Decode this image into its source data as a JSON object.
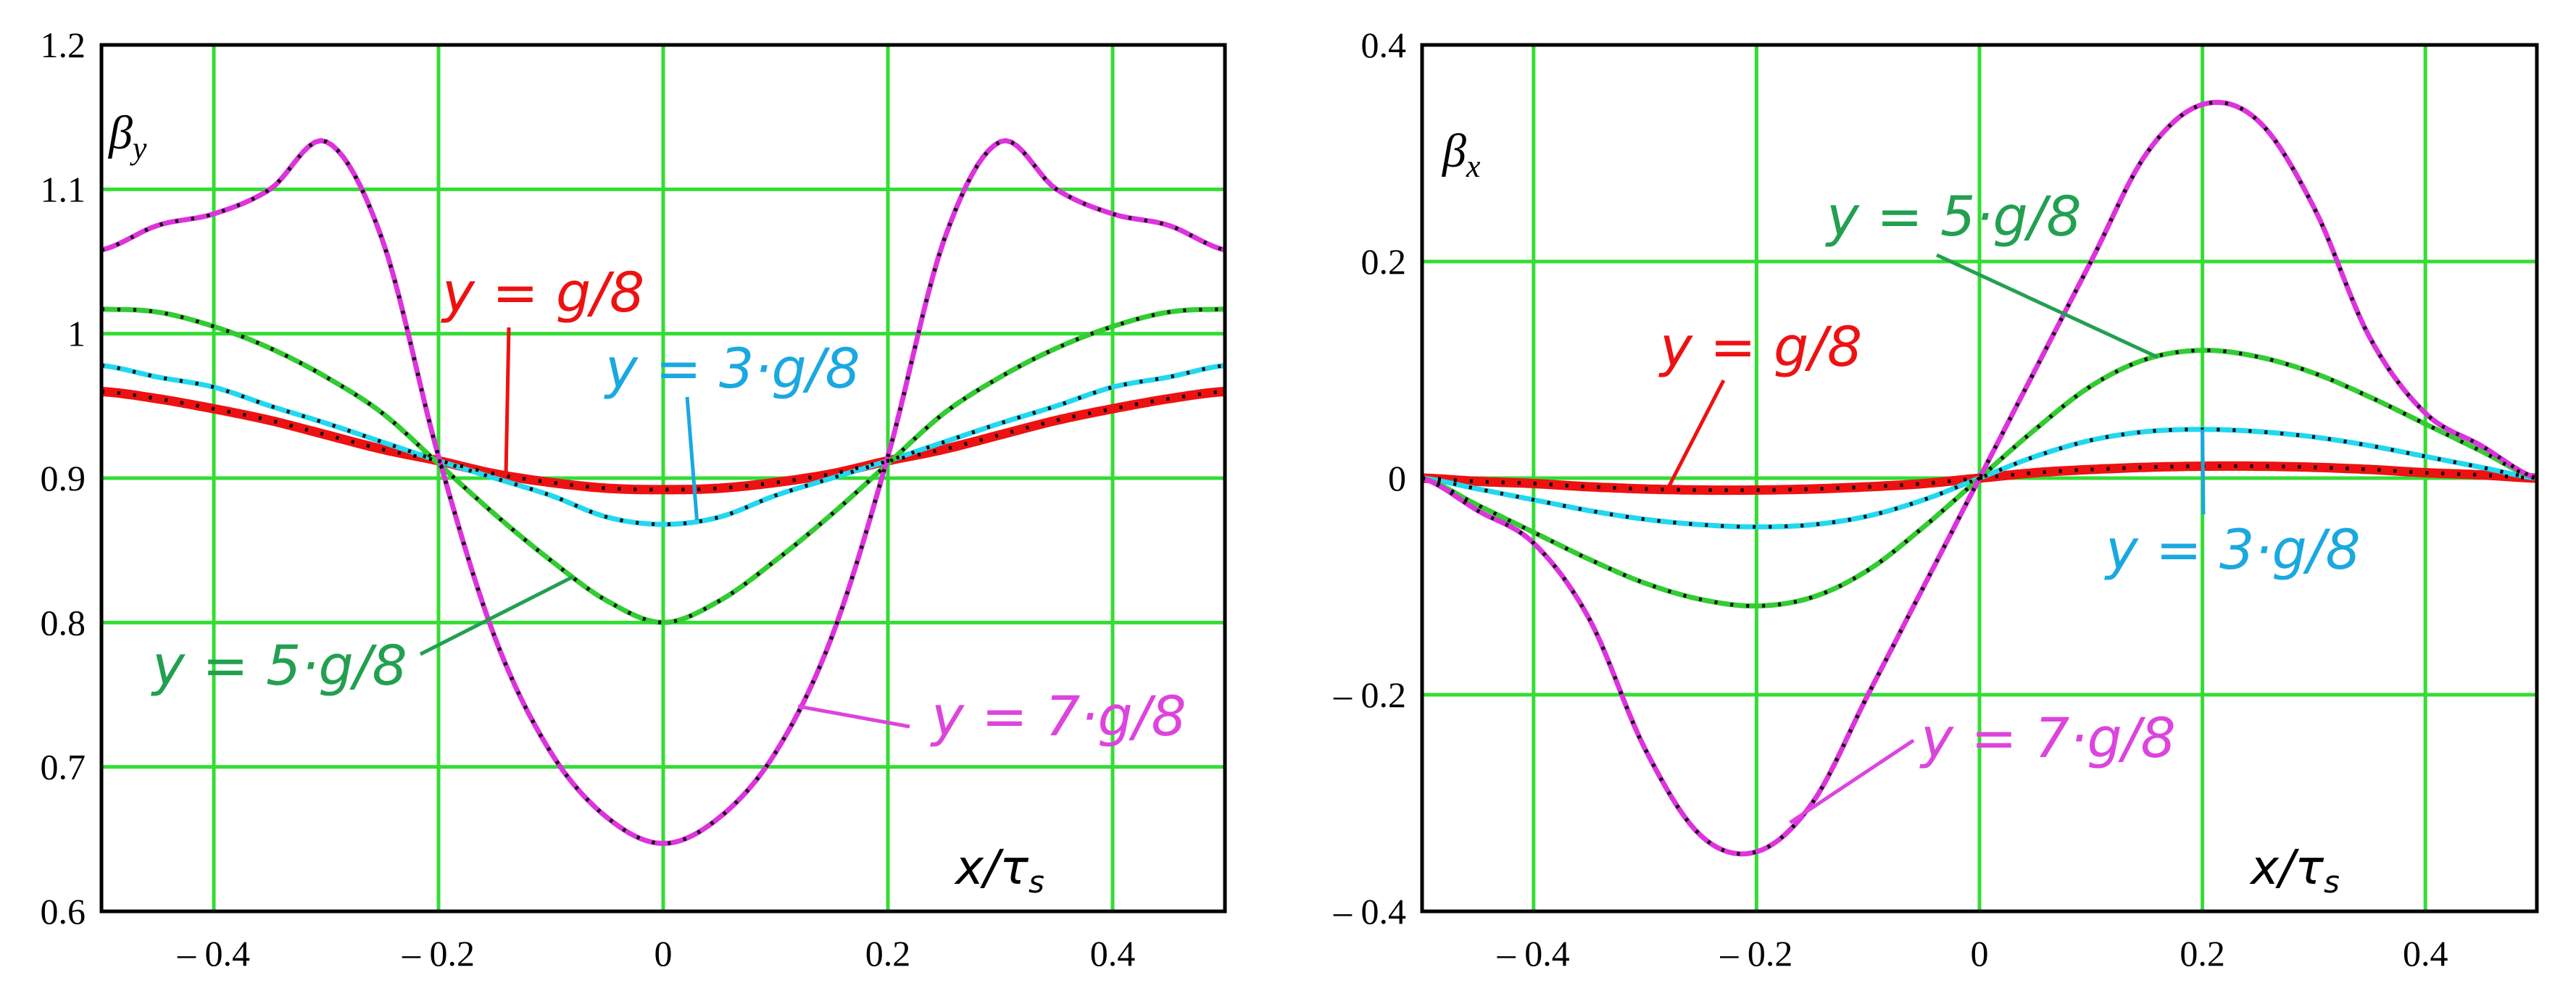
{
  "chart_data": [
    {
      "type": "line",
      "title": "",
      "ylabel": "β",
      "ylabel_sub": "y",
      "xlabel": "x/",
      "xlabel_tau": "τ",
      "xlabel_sub": "s",
      "xlim": [
        -0.5,
        0.5
      ],
      "ylim": [
        0.6,
        1.2
      ],
      "xticks": [
        -0.4,
        -0.2,
        0,
        0.2,
        0.4
      ],
      "xtick_labels": [
        "– 0.4",
        "– 0.2",
        "0",
        "0.2",
        "0.4"
      ],
      "yticks": [
        0.6,
        0.7,
        0.8,
        0.9,
        1,
        1.1,
        1.2
      ],
      "ytick_labels": [
        "0.6",
        "0.7",
        "0.8",
        "0.9",
        "1",
        "1.1",
        "1.2"
      ],
      "grid": true,
      "x": [
        -0.5,
        -0.45,
        -0.4,
        -0.35,
        -0.3,
        -0.25,
        -0.2,
        -0.15,
        -0.1,
        -0.05,
        0,
        0.05,
        0.1,
        0.15,
        0.2,
        0.25,
        0.3,
        0.35,
        0.4,
        0.45,
        0.5
      ],
      "series": [
        {
          "name": "y = g/8",
          "color": "#ee1111",
          "values": [
            0.96,
            0.955,
            0.948,
            0.94,
            0.93,
            0.92,
            0.912,
            0.903,
            0.897,
            0.893,
            0.892,
            0.893,
            0.897,
            0.903,
            0.912,
            0.92,
            0.93,
            0.94,
            0.948,
            0.955,
            0.96
          ]
        },
        {
          "name": "y = 3·g/8",
          "color": "#22d8f0",
          "values": [
            0.978,
            0.97,
            0.963,
            0.95,
            0.938,
            0.925,
            0.912,
            0.9,
            0.888,
            0.873,
            0.868,
            0.873,
            0.888,
            0.9,
            0.912,
            0.925,
            0.938,
            0.95,
            0.963,
            0.97,
            0.978
          ]
        },
        {
          "name": "y = 5·g/8",
          "color": "#33cc33",
          "values": [
            1.017,
            1.015,
            1.005,
            0.99,
            0.97,
            0.945,
            0.91,
            0.875,
            0.843,
            0.815,
            0.8,
            0.815,
            0.843,
            0.875,
            0.91,
            0.945,
            0.97,
            0.99,
            1.005,
            1.015,
            1.017
          ]
        },
        {
          "name": "y = 7·g/8",
          "color": "#dd33dd",
          "values": [
            1.058,
            1.075,
            1.083,
            1.1,
            1.133,
            1.065,
            0.915,
            0.79,
            0.71,
            0.665,
            0.647,
            0.665,
            0.71,
            0.79,
            0.915,
            1.065,
            1.133,
            1.1,
            1.083,
            1.075,
            1.058
          ]
        }
      ],
      "annotations": [
        {
          "series": 0,
          "text_pre": "y",
          "text_post": " = g/8",
          "color": "#ee1111",
          "at_x": -0.14
        },
        {
          "series": 1,
          "text_pre": "y",
          "text_post": " = 3·g/8",
          "color": "#1aa8e0",
          "at_x": 0.03
        },
        {
          "series": 2,
          "text_pre": "y",
          "text_post": " = 5·g/8",
          "color": "#22a050",
          "at_x": -0.08
        },
        {
          "series": 3,
          "text_pre": "y",
          "text_post": " = 7·g/8",
          "color": "#dd44dd",
          "at_x": 0.12
        }
      ]
    },
    {
      "type": "line",
      "title": "",
      "ylabel": "β",
      "ylabel_sub": "x",
      "xlabel": "x/",
      "xlabel_tau": "τ",
      "xlabel_sub": "s",
      "xlim": [
        -0.5,
        0.5
      ],
      "ylim": [
        -0.4,
        0.4
      ],
      "xticks": [
        -0.4,
        -0.2,
        0,
        0.2,
        0.4
      ],
      "xtick_labels": [
        "– 0.4",
        "– 0.2",
        "0",
        "0.2",
        "0.4"
      ],
      "yticks": [
        -0.4,
        -0.2,
        0,
        0.2,
        0.4
      ],
      "ytick_labels": [
        "– 0.4",
        "– 0.2",
        "0",
        "0.2",
        "0.4"
      ],
      "grid": true,
      "x": [
        -0.5,
        -0.45,
        -0.4,
        -0.35,
        -0.3,
        -0.25,
        -0.2,
        -0.15,
        -0.1,
        -0.05,
        0,
        0.05,
        0.1,
        0.15,
        0.2,
        0.25,
        0.3,
        0.35,
        0.4,
        0.45,
        0.5
      ],
      "series": [
        {
          "name": "y = g/8",
          "color": "#ee1111",
          "values": [
            0,
            -0.003,
            -0.005,
            -0.008,
            -0.01,
            -0.011,
            -0.011,
            -0.01,
            -0.008,
            -0.005,
            0,
            0.005,
            0.008,
            0.01,
            0.011,
            0.011,
            0.01,
            0.008,
            0.005,
            0.003,
            0
          ]
        },
        {
          "name": "y = 3·g/8",
          "color": "#22d8f0",
          "values": [
            0,
            -0.01,
            -0.02,
            -0.03,
            -0.038,
            -0.043,
            -0.045,
            -0.043,
            -0.035,
            -0.02,
            0,
            0.02,
            0.035,
            0.043,
            0.045,
            0.043,
            0.038,
            0.03,
            0.02,
            0.01,
            0
          ]
        },
        {
          "name": "y = 5·g/8",
          "color": "#33cc33",
          "values": [
            0,
            -0.025,
            -0.05,
            -0.075,
            -0.097,
            -0.112,
            -0.118,
            -0.11,
            -0.085,
            -0.045,
            0,
            0.045,
            0.085,
            0.11,
            0.118,
            0.112,
            0.097,
            0.075,
            0.05,
            0.025,
            0
          ]
        },
        {
          "name": "y = 7·g/8",
          "color": "#dd33dd",
          "values": [
            0,
            -0.03,
            -0.06,
            -0.13,
            -0.25,
            -0.33,
            -0.345,
            -0.3,
            -0.2,
            -0.1,
            0,
            0.1,
            0.2,
            0.3,
            0.345,
            0.33,
            0.25,
            0.13,
            0.06,
            0.03,
            0
          ]
        }
      ],
      "annotations": [
        {
          "series": 0,
          "text_pre": "y",
          "text_post": " = g/8",
          "color": "#ee1111",
          "at_x": -0.28
        },
        {
          "series": 1,
          "text_pre": "y",
          "text_post": " = 3·g/8",
          "color": "#1aa8e0",
          "at_x": 0.2
        },
        {
          "series": 2,
          "text_pre": "y",
          "text_post": " = 5·g/8",
          "color": "#22a050",
          "at_x": 0.16
        },
        {
          "series": 3,
          "text_pre": "y",
          "text_post": " = 7·g/8",
          "color": "#dd44dd",
          "at_x": -0.17
        }
      ]
    }
  ],
  "colors": {
    "grid": "#33dd33",
    "frame": "#000000",
    "dots": "#000000"
  }
}
